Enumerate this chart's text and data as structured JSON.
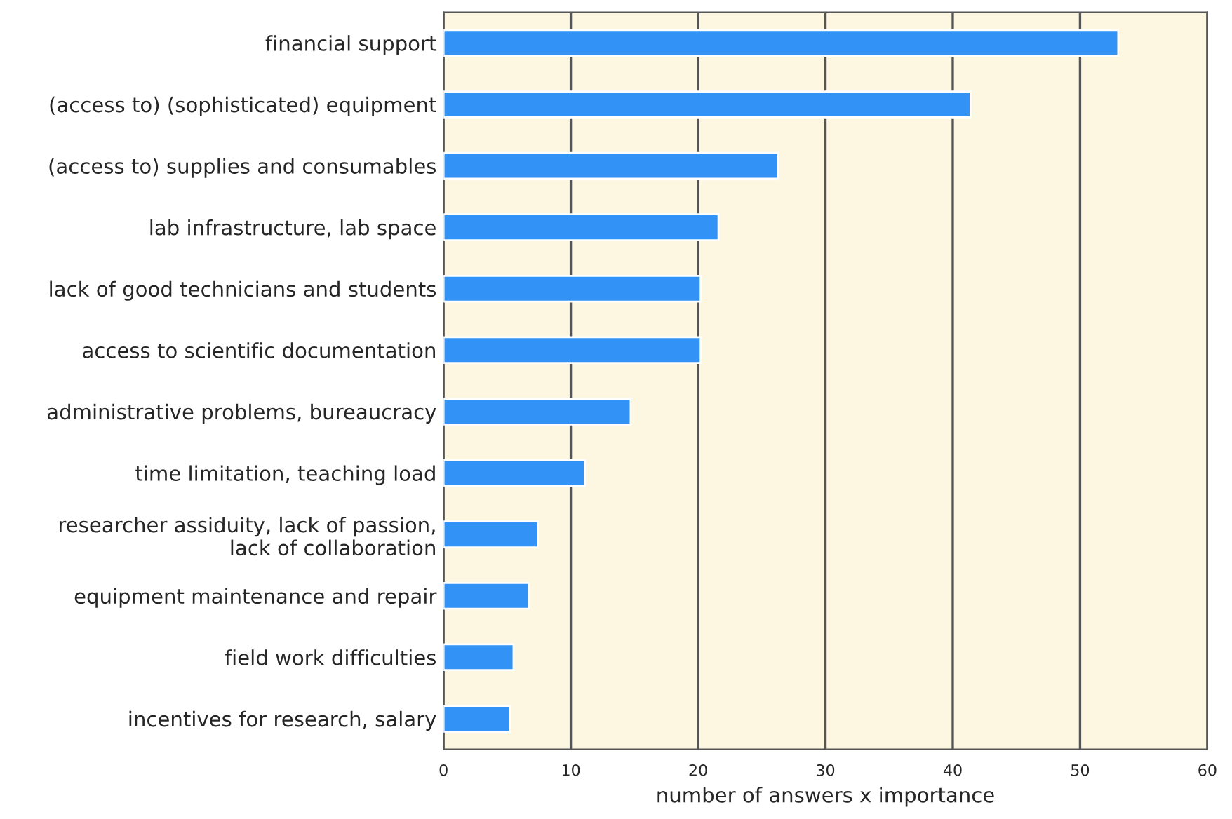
{
  "chart_data": {
    "type": "bar",
    "orientation": "horizontal",
    "xlabel": "number of answers x importance",
    "categories": [
      "financial support",
      "(access to) (sophisticated) equipment",
      "(access to) supplies and consumables",
      "lab infrastructure, lab space",
      "lack of good technicians and students",
      "access to scientific documentation",
      "administrative problems, bureaucracy",
      "time limitation, teaching load",
      "researcher assiduity, lack of passion,\nlack of collaboration",
      "equipment maintenance and repair",
      "field work difficulties",
      "incentives for research, salary"
    ],
    "values": [
      53.0,
      41.4,
      26.3,
      21.6,
      20.2,
      20.2,
      14.7,
      11.1,
      7.4,
      6.7,
      5.5,
      5.2
    ],
    "color": "#3392f5",
    "xlim": [
      0,
      60
    ],
    "xticks": [
      0,
      10,
      20,
      30,
      40,
      50,
      60
    ],
    "grid": "x"
  }
}
